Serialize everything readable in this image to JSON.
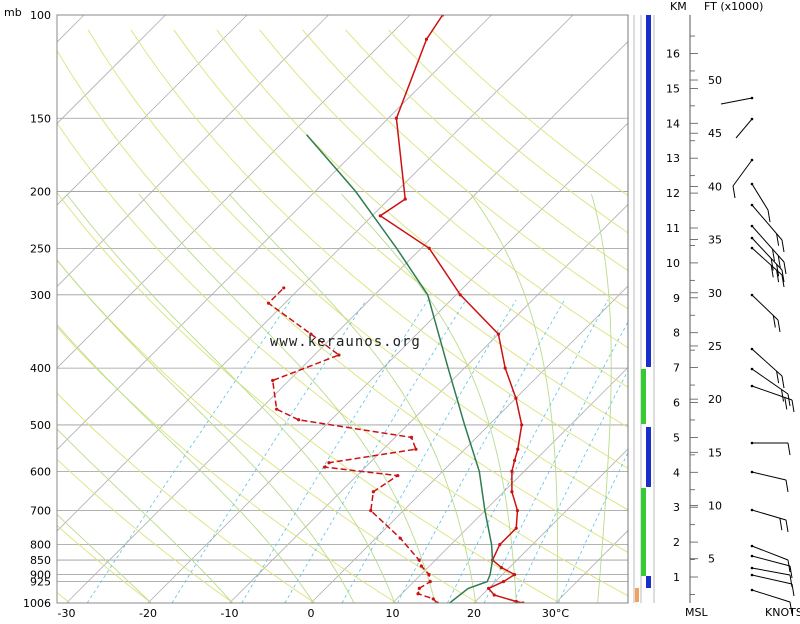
{
  "watermark": "www.keraunos.org",
  "chart_data": {
    "type": "line",
    "title": "",
    "xlabel": "",
    "ylabel": "",
    "pressure_unit": "mb",
    "pressure_scale": "log",
    "ylim": [
      1006,
      100
    ],
    "xlim": [
      -32,
      38
    ],
    "skew": "temperature lines skewed 45° to the right",
    "grid": true,
    "pressure_ticks": [
      100,
      150,
      200,
      250,
      300,
      400,
      500,
      600,
      700,
      800,
      850,
      900,
      925,
      1006
    ],
    "temperature_ticks": [
      -30,
      -20,
      -10,
      0,
      10,
      20,
      30
    ],
    "temperature_tick_labels": [
      "-30",
      "-20",
      "-10",
      "0",
      "10",
      "20",
      "30°C"
    ],
    "series": [
      {
        "name": "",
        "color": "#cc1111",
        "style": "solid",
        "points": [
          [
            1006,
            26
          ],
          [
            1000,
            25
          ],
          [
            975,
            21.5
          ],
          [
            950,
            20
          ],
          [
            925,
            21
          ],
          [
            900,
            21.5
          ],
          [
            875,
            19
          ],
          [
            850,
            17
          ],
          [
            800,
            16
          ],
          [
            750,
            16
          ],
          [
            700,
            14
          ],
          [
            650,
            11
          ],
          [
            600,
            8.5
          ],
          [
            575,
            7.5
          ],
          [
            550,
            6.5
          ],
          [
            500,
            4
          ],
          [
            450,
            0
          ],
          [
            400,
            -5
          ],
          [
            350,
            -10
          ],
          [
            300,
            -19.5
          ],
          [
            250,
            -29
          ],
          [
            220,
            -39
          ],
          [
            206,
            -38
          ],
          [
            150,
            -49
          ],
          [
            110,
            -55
          ],
          [
            100,
            -56
          ]
        ]
      },
      {
        "name": "",
        "color": "#cc1111",
        "style": "dashed",
        "points": [
          [
            1006,
            15.5
          ],
          [
            990,
            14.5
          ],
          [
            970,
            12
          ],
          [
            950,
            11.5
          ],
          [
            925,
            12
          ],
          [
            900,
            11
          ],
          [
            870,
            9
          ],
          [
            850,
            8
          ],
          [
            780,
            3
          ],
          [
            700,
            -4
          ],
          [
            650,
            -6
          ],
          [
            610,
            -5
          ],
          [
            590,
            -15
          ],
          [
            580,
            -15
          ],
          [
            550,
            -6
          ],
          [
            525,
            -8
          ],
          [
            490,
            -24
          ],
          [
            470,
            -28
          ],
          [
            420,
            -32
          ],
          [
            380,
            -27
          ],
          [
            350,
            -33
          ],
          [
            310,
            -42
          ],
          [
            292,
            -42
          ]
        ]
      },
      {
        "name": "",
        "color": "#2e7d4f",
        "style": "solid",
        "points": [
          [
            1006,
            17
          ],
          [
            950,
            17.5
          ],
          [
            925,
            19
          ],
          [
            900,
            18.5
          ],
          [
            850,
            17
          ],
          [
            800,
            15
          ],
          [
            700,
            10
          ],
          [
            600,
            4.5
          ],
          [
            500,
            -3
          ],
          [
            400,
            -12
          ],
          [
            300,
            -23.5
          ],
          [
            250,
            -33
          ],
          [
            200,
            -45
          ],
          [
            160,
            -58
          ]
        ]
      }
    ],
    "altitude_km_ticks": [
      1,
      2,
      3,
      4,
      5,
      6,
      7,
      8,
      9,
      10,
      11,
      12,
      13,
      14,
      15,
      16
    ],
    "altitude_ft_x1000_ticks": [
      5,
      10,
      15,
      20,
      25,
      30,
      35,
      40,
      45,
      50
    ],
    "altitude_km_label": "KM",
    "altitude_ft_label": "FT (x1000)",
    "altitude_base_label": "MSL",
    "wind_label": "KNOTS"
  }
}
